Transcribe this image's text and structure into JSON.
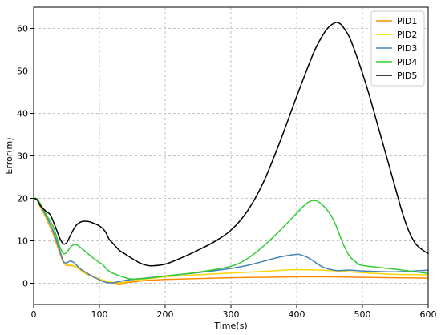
{
  "chart_data": {
    "type": "line",
    "title": "",
    "xlabel": "Time(s)",
    "ylabel": "Error(m)",
    "xlim": [
      0,
      600
    ],
    "ylim": [
      -5,
      65
    ],
    "xticks": [
      0,
      100,
      200,
      300,
      400,
      500,
      600
    ],
    "yticks": [
      0,
      10,
      20,
      30,
      40,
      50,
      60
    ],
    "grid": true,
    "grid_style": "dashed",
    "legend_position": "top-right",
    "series": [
      {
        "name": "PID1",
        "color": "#ff8c00",
        "x": [
          0,
          5,
          10,
          20,
          30,
          40,
          45,
          50,
          55,
          60,
          65,
          70,
          80,
          90,
          100,
          110,
          120,
          130,
          140,
          150,
          175,
          200,
          250,
          300,
          350,
          400,
          450,
          500,
          550,
          600
        ],
        "y": [
          20,
          19.8,
          18,
          15,
          11.5,
          7,
          5,
          4.2,
          4.2,
          4.1,
          3.8,
          3.2,
          2.2,
          1.5,
          1.0,
          0.5,
          0.1,
          -0.1,
          0.1,
          0.3,
          0.7,
          0.9,
          1.1,
          1.3,
          1.4,
          1.5,
          1.5,
          1.4,
          1.3,
          1.2
        ]
      },
      {
        "name": "PID2",
        "color": "#ffd700",
        "x": [
          0,
          5,
          10,
          20,
          30,
          40,
          45,
          50,
          55,
          60,
          65,
          70,
          80,
          90,
          100,
          110,
          120,
          130,
          140,
          150,
          175,
          200,
          250,
          300,
          350,
          400,
          450,
          500,
          550,
          600
        ],
        "y": [
          20,
          19.8,
          18.2,
          15.2,
          12,
          7.5,
          5.2,
          4.3,
          4.3,
          4.2,
          3.8,
          3.2,
          2.3,
          1.6,
          1.0,
          0.5,
          0.2,
          0.1,
          0.3,
          0.6,
          1.1,
          1.5,
          2.0,
          2.4,
          2.8,
          3.2,
          3.0,
          2.5,
          2.1,
          2.0
        ]
      },
      {
        "name": "PID3",
        "color": "#4682b4",
        "x": [
          0,
          5,
          10,
          20,
          30,
          40,
          45,
          50,
          55,
          60,
          65,
          70,
          80,
          90,
          100,
          110,
          115,
          120,
          130,
          140,
          150,
          175,
          200,
          250,
          300,
          325,
          350,
          375,
          400,
          410,
          420,
          440,
          460,
          480,
          500,
          550,
          600
        ],
        "y": [
          20,
          19.8,
          18.5,
          15.5,
          12.2,
          7.5,
          5.2,
          4.8,
          5.2,
          5.0,
          4.3,
          3.5,
          2.5,
          1.6,
          0.8,
          0.2,
          0.1,
          0.1,
          0.4,
          0.7,
          0.9,
          1.3,
          1.7,
          2.5,
          3.5,
          4.2,
          5.2,
          6.2,
          6.8,
          6.5,
          5.8,
          3.8,
          3.0,
          3.1,
          2.9,
          2.7,
          3.1
        ]
      },
      {
        "name": "PID4",
        "color": "#32cd32",
        "x": [
          0,
          5,
          10,
          20,
          30,
          40,
          45,
          50,
          55,
          60,
          65,
          70,
          80,
          90,
          100,
          105,
          110,
          115,
          120,
          130,
          140,
          150,
          175,
          200,
          250,
          300,
          325,
          350,
          375,
          400,
          415,
          425,
          435,
          450,
          460,
          470,
          480,
          490,
          500,
          550,
          600
        ],
        "y": [
          20,
          19.9,
          18.8,
          16,
          13.2,
          8.5,
          7,
          7.2,
          8.3,
          9.0,
          9.1,
          8.6,
          7.3,
          6.0,
          4.9,
          4.4,
          3.5,
          2.8,
          2.4,
          1.8,
          1.3,
          1.0,
          1.2,
          1.7,
          2.6,
          4.0,
          5.8,
          8.8,
          12.5,
          16.5,
          18.8,
          19.5,
          19.0,
          16.5,
          13.5,
          9.5,
          6.5,
          5.0,
          4.2,
          3.3,
          2.3
        ]
      },
      {
        "name": "PID5",
        "color": "#000000",
        "x": [
          0,
          5,
          10,
          15,
          20,
          25,
          30,
          35,
          40,
          45,
          50,
          55,
          60,
          65,
          70,
          75,
          80,
          85,
          90,
          95,
          100,
          105,
          110,
          115,
          120,
          130,
          140,
          150,
          160,
          170,
          180,
          200,
          225,
          250,
          275,
          300,
          325,
          350,
          375,
          400,
          425,
          440,
          450,
          460,
          465,
          470,
          480,
          490,
          500,
          510,
          520,
          530,
          540,
          550,
          560,
          570,
          580,
          590,
          600
        ],
        "y": [
          20,
          19.7,
          18.3,
          17.5,
          16.8,
          16.2,
          14.5,
          12.5,
          10.5,
          9.3,
          9.5,
          11,
          12.5,
          13.7,
          14.3,
          14.6,
          14.6,
          14.5,
          14.2,
          13.9,
          13.5,
          12.9,
          11.9,
          10.3,
          9.5,
          7.8,
          6.8,
          5.8,
          4.9,
          4.3,
          4.1,
          4.5,
          6.0,
          7.8,
          9.8,
          12.5,
          17.0,
          24.0,
          33.5,
          44.0,
          54.0,
          58.5,
          60.5,
          61.4,
          61.2,
          60.5,
          58.0,
          54.0,
          49.5,
          44.5,
          39.0,
          33.5,
          28.0,
          22.5,
          17.0,
          12.5,
          9.5,
          8.0,
          7.0
        ]
      }
    ]
  },
  "colors": {
    "grid": "#b0b0b0",
    "axis": "#000000",
    "legend_border": "#cccccc"
  }
}
